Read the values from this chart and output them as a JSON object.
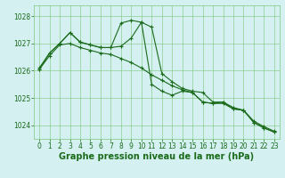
{
  "xlabel": "Graphe pression niveau de la mer (hPa)",
  "ylim": [
    1023.5,
    1028.4
  ],
  "xlim": [
    -0.5,
    23.5
  ],
  "yticks": [
    1024,
    1025,
    1026,
    1027,
    1028
  ],
  "xticks": [
    0,
    1,
    2,
    3,
    4,
    5,
    6,
    7,
    8,
    9,
    10,
    11,
    12,
    13,
    14,
    15,
    16,
    17,
    18,
    19,
    20,
    21,
    22,
    23
  ],
  "bg_color": "#d4f0f0",
  "grid_color": "#7ec87e",
  "line_color": "#1a6b1a",
  "line1_y": [
    1026.05,
    1026.65,
    1027.0,
    1027.4,
    1027.05,
    1026.95,
    1026.85,
    1026.85,
    1027.75,
    1027.85,
    1027.78,
    1027.6,
    1025.9,
    1025.6,
    1025.35,
    1025.25,
    1025.2,
    1024.85,
    1024.85,
    1024.65,
    1024.55,
    1024.15,
    1023.95,
    1023.78
  ],
  "line2_y": [
    1026.1,
    1026.65,
    1027.0,
    1027.4,
    1027.05,
    1026.95,
    1026.85,
    1026.85,
    1026.9,
    1027.2,
    1027.78,
    1025.5,
    1025.25,
    1025.1,
    1025.25,
    1025.2,
    1024.85,
    1024.8,
    1024.85,
    1024.6,
    1024.55,
    1024.1,
    1023.9,
    1023.75
  ],
  "line3_y": [
    1026.05,
    1026.55,
    1026.95,
    1027.0,
    1026.85,
    1026.75,
    1026.65,
    1026.6,
    1026.45,
    1026.3,
    1026.1,
    1025.85,
    1025.65,
    1025.45,
    1025.3,
    1025.2,
    1024.85,
    1024.8,
    1024.8,
    1024.6,
    1024.55,
    1024.1,
    1023.9,
    1023.75
  ],
  "tick_fontsize": 5.5,
  "label_fontsize": 7.0,
  "figsize": [
    3.2,
    2.0
  ],
  "dpi": 100
}
